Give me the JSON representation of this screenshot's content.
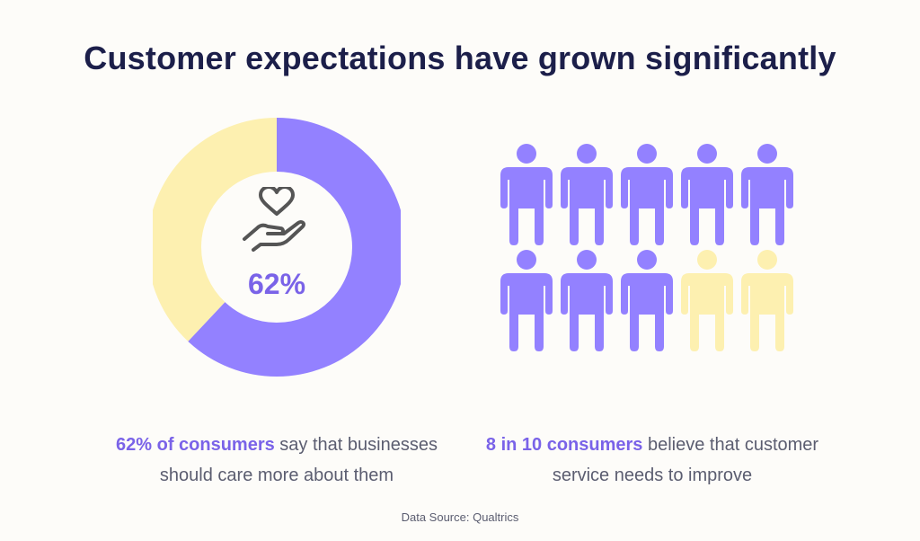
{
  "title": "Customer expectations have grown significantly",
  "chart_data": [
    {
      "type": "pie",
      "donut": true,
      "series": [
        {
          "values": [
            62,
            38
          ]
        }
      ],
      "colors": [
        "#9381ff",
        "#fdf0b0"
      ],
      "center_label": "62%",
      "center_icon": "heart-in-hand-icon"
    },
    {
      "type": "pictogram",
      "total": 10,
      "highlighted": 8,
      "icon": "person-icon",
      "colors": [
        "#9381ff",
        "#fdf0b0"
      ]
    }
  ],
  "captions": {
    "left": {
      "highlight": "62% of consumers",
      "text": " say that businesses should care more about them"
    },
    "right": {
      "highlight": "8 in 10 consumers",
      "text": " believe that customer service needs to improve"
    }
  },
  "source": "Data Source: Qualtrics"
}
